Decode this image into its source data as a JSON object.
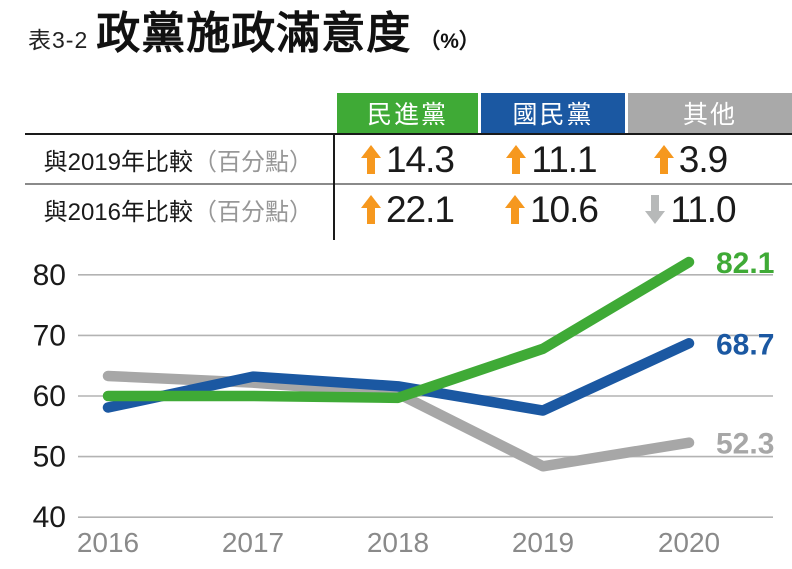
{
  "title": {
    "prefix": "表3-2",
    "main": "政黨施政滿意度",
    "unit": "（%）"
  },
  "colors": {
    "green": "#3faa36",
    "blue": "#1b58a2",
    "gray": "#a7a7a7",
    "arrow_up": "#f6981e",
    "arrow_down": "#b7b9b9",
    "grid": "#b3b3b3",
    "axis_text": "#1a1a1a",
    "x_label": "#8a8a8a"
  },
  "comparison_table": {
    "columns": [
      {
        "label": "民進黨",
        "color": "#3faa36"
      },
      {
        "label": "國民黨",
        "color": "#1b58a2"
      },
      {
        "label": "其他",
        "color": "#a9a9a9"
      }
    ],
    "rows": [
      {
        "label": "與2019年比較",
        "label_suffix": "（百分點）",
        "values": [
          {
            "direction": "up",
            "value": "14.3"
          },
          {
            "direction": "up",
            "value": "11.1"
          },
          {
            "direction": "up",
            "value": "3.9"
          }
        ]
      },
      {
        "label": "與2016年比較",
        "label_suffix": "（百分點）",
        "values": [
          {
            "direction": "up",
            "value": "22.1"
          },
          {
            "direction": "up",
            "value": "10.6"
          },
          {
            "direction": "down",
            "value": "11.0"
          }
        ]
      }
    ]
  },
  "chart_data": {
    "type": "line",
    "title": "政黨施政滿意度（%）",
    "x": [
      "2016",
      "2017",
      "2018",
      "2019",
      "2020"
    ],
    "xlabel": "",
    "ylabel": "",
    "ylim": [
      40,
      85
    ],
    "yticks": [
      40,
      50,
      60,
      70,
      80
    ],
    "grid": true,
    "legend_position": "table-header",
    "series": [
      {
        "name": "民進黨",
        "color": "#3faa36",
        "values": [
          60.0,
          60.0,
          59.7,
          67.8,
          82.1
        ],
        "end_label": "82.1"
      },
      {
        "name": "國民黨",
        "color": "#1b58a2",
        "values": [
          58.1,
          63.2,
          61.6,
          57.6,
          68.7
        ],
        "end_label": "68.7"
      },
      {
        "name": "其他",
        "color": "#a7a7a7",
        "values": [
          63.3,
          62.2,
          60.4,
          48.4,
          52.3
        ],
        "end_label": "52.3"
      }
    ]
  }
}
